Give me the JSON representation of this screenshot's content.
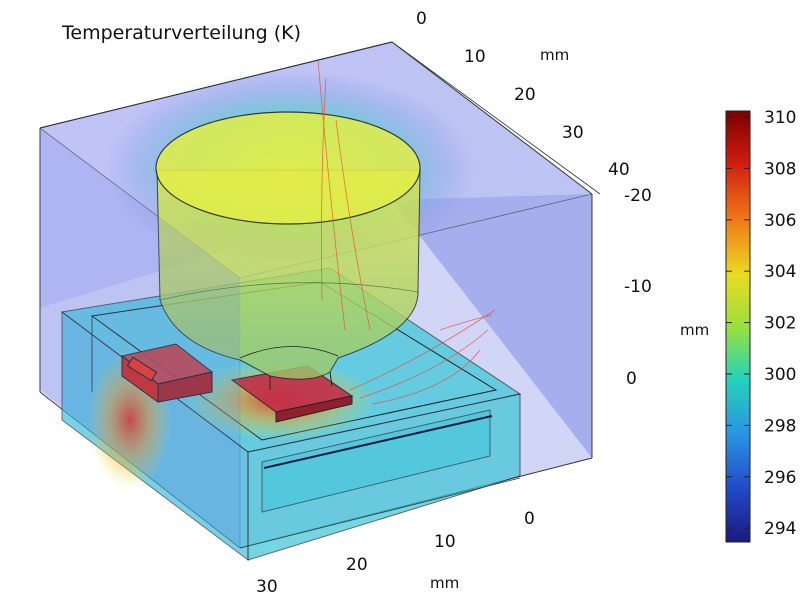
{
  "title": "Temperaturverteilung (K)",
  "axes": {
    "y_axis": {
      "unit": "mm",
      "ticks": [
        "0",
        "10",
        "20",
        "30",
        "40"
      ]
    },
    "z_axis": {
      "unit": "mm",
      "ticks": [
        "-20",
        "-10",
        "0"
      ]
    },
    "x_axis": {
      "unit": "mm",
      "ticks": [
        "0",
        "10",
        "20",
        "30"
      ]
    }
  },
  "colorbar": {
    "ticks": [
      "310",
      "308",
      "306",
      "304",
      "302",
      "300",
      "298",
      "296",
      "294"
    ],
    "colors": [
      "#7a0000",
      "#c81e10",
      "#ee6a1a",
      "#e8d21f",
      "#8fdc40",
      "#22d2b8",
      "#2a8fe0",
      "#2046c8",
      "#1a1a7e"
    ]
  }
}
